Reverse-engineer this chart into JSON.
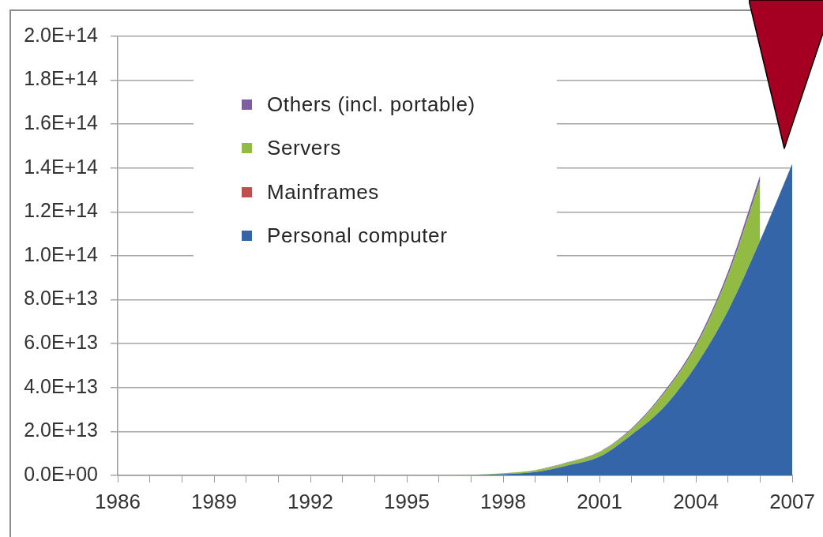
{
  "chart_data": {
    "type": "area",
    "stacked": true,
    "categories": [
      "1986",
      null,
      null,
      "1989",
      null,
      null,
      "1992",
      null,
      null,
      "1995",
      null,
      null,
      "1998",
      null,
      null,
      "2001",
      null,
      null,
      "2004",
      null,
      null,
      "2007"
    ],
    "series": [
      {
        "name": "Personal computer",
        "color": "#3465a9",
        "values": [
          0,
          0,
          0,
          0,
          0,
          0,
          0,
          0,
          0,
          0,
          0,
          100000000000.0,
          500000000000.0,
          1500000000000.0,
          4500000000000.0,
          8500000000000.0,
          18500000000000.0,
          31000000000000.0,
          50000000000000.0,
          75000000000000.0,
          107000000000000.0,
          142000000000000.0
        ]
      },
      {
        "name": "Mainframes",
        "color": "#c0504d",
        "values": [
          null,
          null,
          null,
          null,
          null,
          null,
          null,
          null,
          null,
          null,
          null,
          null,
          null,
          null,
          null,
          null,
          null,
          null,
          null,
          null,
          null,
          null
        ]
      },
      {
        "name": "Servers",
        "color": "#92bb44",
        "values": [
          0,
          0,
          0,
          0,
          0,
          0,
          0,
          0,
          0,
          0,
          0,
          200000000000.0,
          500000000000.0,
          800000000000.0,
          1300000000000.0,
          2000000000000.0,
          2500000000000.0,
          6200000000000.0,
          8800000000000.0,
          16000000000000.0,
          27000000000000.0,
          null
        ]
      },
      {
        "name": "Others (incl. portable)",
        "color": "#7d5fa0",
        "values": [
          0,
          0,
          0,
          0,
          0,
          0,
          0,
          0,
          0,
          0,
          0,
          0,
          0,
          100000000000.0,
          200000000000.0,
          300000000000.0,
          500000000000.0,
          800000000000.0,
          1200000000000.0,
          1800000000000.0,
          2700000000000.0,
          null
        ]
      }
    ],
    "ylim": [
      0,
      200000000000000.0
    ],
    "yticks": [
      {
        "value": 0,
        "label": "0.0E+00"
      },
      {
        "value": 20000000000000.0,
        "label": "2.0E+13"
      },
      {
        "value": 40000000000000.0,
        "label": "4.0E+13"
      },
      {
        "value": 60000000000000.0,
        "label": "6.0E+13"
      },
      {
        "value": 80000000000000.0,
        "label": "8.0E+13"
      },
      {
        "value": 100000000000000.0,
        "label": "1.0E+14"
      },
      {
        "value": 120000000000000.0,
        "label": "1.2E+14"
      },
      {
        "value": 140000000000000.0,
        "label": "1.4E+14"
      },
      {
        "value": 160000000000000.0,
        "label": "1.6E+14"
      },
      {
        "value": 180000000000000.0,
        "label": "1.8E+14"
      },
      {
        "value": 200000000000000.0,
        "label": "2.0E+14"
      }
    ],
    "grid": "y",
    "legend": "top left"
  }
}
